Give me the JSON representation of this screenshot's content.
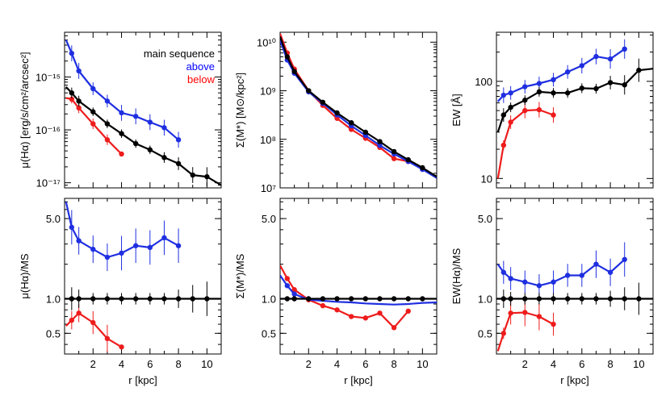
{
  "figure": {
    "legend": {
      "title": "main sequence",
      "entries": [
        {
          "label": "above",
          "color": "#0000ff"
        },
        {
          "label": "below",
          "color": "#ff0000"
        }
      ]
    }
  },
  "colors": {
    "ms": "#000000",
    "above": "#1f2fe0",
    "below": "#ee1c1c"
  },
  "chart_data": [
    {
      "id": "sb",
      "type": "line",
      "yscale": "log",
      "ylabel": "μ(Hα) [erg/s/cm²/arcsec²]",
      "xlabel": "",
      "xlim": [
        0,
        11
      ],
      "ylim": [
        8e-18,
        7e-15
      ],
      "yticks": [
        {
          "v": 1e-15,
          "label": "10⁻¹⁵"
        },
        {
          "v": 1e-16,
          "label": "10⁻¹⁶"
        },
        {
          "v": 1e-17,
          "label": "10⁻¹⁷"
        }
      ],
      "xticks": [
        2,
        4,
        6,
        8,
        10
      ],
      "show_xticklabels": false,
      "series": [
        {
          "name": "main sequence",
          "key": "ms",
          "x": [
            0.1,
            0.5,
            1,
            2,
            3,
            4,
            5,
            6,
            7,
            8,
            9,
            10,
            11
          ],
          "y": [
            6.5e-16,
            5e-16,
            3.5e-16,
            2.2e-16,
            1.3e-16,
            8.5e-17,
            5.5e-17,
            4.2e-17,
            3e-17,
            2.3e-17,
            1.4e-17,
            1.3e-17,
            9e-18
          ],
          "markers": [
            0.5,
            1,
            2,
            3,
            4,
            5,
            6,
            7,
            8,
            9,
            10
          ],
          "err": [
            0.18,
            0.1,
            0.1,
            0.08,
            0.08,
            0.08,
            0.08,
            0.08,
            0.1,
            0.12,
            0.15,
            0.18,
            0
          ]
        },
        {
          "name": "above",
          "key": "above",
          "x": [
            0.1,
            0.5,
            1,
            2,
            3,
            4,
            5,
            6,
            7,
            8
          ],
          "y": [
            5e-15,
            2.8e-15,
            1.3e-15,
            6e-16,
            3.5e-16,
            2.1e-16,
            1.8e-16,
            1.4e-16,
            1.1e-16,
            6.5e-17
          ],
          "markers": [
            0.5,
            1,
            2,
            3,
            4,
            5,
            6,
            7,
            8
          ],
          "err": [
            0,
            0.15,
            0.15,
            0.12,
            0.12,
            0.15,
            0.15,
            0.15,
            0.15,
            0.15
          ]
        },
        {
          "name": "below",
          "key": "below",
          "x": [
            0.1,
            0.5,
            1,
            2,
            3,
            4
          ],
          "y": [
            4e-16,
            3.8e-16,
            2.6e-16,
            1.3e-16,
            6.5e-17,
            3.5e-17
          ],
          "markers": [
            0.5,
            1,
            2,
            3,
            4
          ],
          "err": [
            0,
            0.08,
            0.1,
            0.1,
            0.1,
            0
          ]
        }
      ]
    },
    {
      "id": "sm",
      "type": "line",
      "yscale": "log",
      "ylabel": "Σ(M*) [M⊙/kpc²]",
      "xlabel": "",
      "xlim": [
        0,
        11
      ],
      "ylim": [
        10000000.0,
        16000000000.0
      ],
      "yticks": [
        {
          "v": 10000000000.0,
          "label": "10¹⁰"
        },
        {
          "v": 1000000000.0,
          "label": "10⁹"
        },
        {
          "v": 100000000.0,
          "label": "10⁸"
        },
        {
          "v": 10000000.0,
          "label": "10⁷"
        }
      ],
      "xticks": [
        2,
        4,
        6,
        8,
        10
      ],
      "show_xticklabels": false,
      "series": [
        {
          "name": "main sequence",
          "key": "ms",
          "x": [
            0,
            0.5,
            1,
            2,
            3,
            4,
            5,
            6,
            7,
            8,
            9,
            10,
            11
          ],
          "y": [
            13000000000.0,
            5000000000.0,
            2500000000.0,
            1000000000.0,
            580000000.0,
            350000000.0,
            220000000.0,
            140000000.0,
            90000000.0,
            56000000.0,
            38000000.0,
            26000000.0,
            17000000.0
          ],
          "markers": [
            0.5,
            1,
            2,
            3,
            4,
            5,
            6,
            7,
            8,
            9,
            10
          ],
          "err": [
            0,
            0,
            0,
            0,
            0,
            0,
            0,
            0,
            0,
            0,
            0,
            0,
            0
          ]
        },
        {
          "name": "above",
          "key": "above",
          "x": [
            0,
            0.5,
            1,
            2,
            3,
            4,
            5,
            6,
            7,
            8,
            9,
            10,
            11
          ],
          "y": [
            11000000000.0,
            4300000000.0,
            2300000000.0,
            950000000.0,
            550000000.0,
            320000000.0,
            190000000.0,
            120000000.0,
            75000000.0,
            50000000.0,
            35000000.0,
            24000000.0,
            16000000.0
          ],
          "markers": [
            0.5,
            1,
            2,
            3,
            4,
            5,
            6,
            7,
            8,
            9,
            10
          ],
          "err": [
            0,
            0,
            0,
            0,
            0,
            0,
            0,
            0,
            0,
            0,
            0,
            0,
            0
          ]
        },
        {
          "name": "below",
          "key": "below",
          "x": [
            0,
            0.5,
            1,
            2,
            3,
            4,
            5,
            6,
            7,
            8,
            9
          ],
          "y": [
            15000000000.0,
            6000000000.0,
            2800000000.0,
            1000000000.0,
            500000000.0,
            270000000.0,
            160000000.0,
            105000000.0,
            68000000.0,
            40000000.0,
            35000000.0
          ],
          "markers": [
            0.5,
            1,
            2,
            3,
            4,
            5,
            6,
            7,
            8,
            9
          ],
          "err": [
            0,
            0,
            0,
            0,
            0,
            0,
            0,
            0,
            0,
            0,
            0
          ]
        }
      ]
    },
    {
      "id": "ew",
      "type": "line",
      "yscale": "log",
      "ylabel": "EW [Å]",
      "xlabel": "",
      "xlim": [
        0,
        11
      ],
      "ylim": [
        8,
        320
      ],
      "yticks": [
        {
          "v": 100,
          "label": "100"
        },
        {
          "v": 10,
          "label": "10"
        }
      ],
      "xticks": [
        2,
        4,
        6,
        8,
        10
      ],
      "show_xticklabels": false,
      "series": [
        {
          "name": "main sequence",
          "key": "ms",
          "x": [
            0.1,
            0.5,
            1,
            2,
            3,
            4,
            5,
            6,
            7,
            8,
            9,
            10,
            11
          ],
          "y": [
            30,
            45,
            54,
            64,
            78,
            76,
            76,
            85,
            84,
            97,
            92,
            130,
            135
          ],
          "markers": [
            0.5,
            1,
            2,
            3,
            4,
            5,
            6,
            7,
            8,
            9,
            10
          ],
          "err": [
            0,
            0.07,
            0.05,
            0.05,
            0.05,
            0.05,
            0.05,
            0.05,
            0.05,
            0.07,
            0.1,
            0.12,
            0
          ]
        },
        {
          "name": "above",
          "key": "above",
          "x": [
            0.1,
            0.5,
            1,
            2,
            3,
            4,
            5,
            6,
            7,
            8,
            9
          ],
          "y": [
            62,
            72,
            76,
            88,
            95,
            104,
            125,
            145,
            180,
            170,
            215
          ],
          "markers": [
            0.5,
            1,
            2,
            3,
            4,
            5,
            6,
            7,
            8,
            9
          ],
          "err": [
            0.08,
            0.08,
            0.07,
            0.07,
            0.07,
            0.07,
            0.07,
            0.08,
            0.08,
            0.1,
            0.1
          ]
        },
        {
          "name": "below",
          "key": "below",
          "x": [
            0.1,
            0.5,
            1,
            2,
            3,
            4
          ],
          "y": [
            10,
            22,
            38,
            50,
            51,
            45
          ],
          "markers": [
            0.5,
            1,
            2,
            3,
            4
          ],
          "err": [
            0,
            0.05,
            0.07,
            0.08,
            0.08,
            0.08
          ]
        }
      ]
    },
    {
      "id": "sbr",
      "type": "line",
      "yscale": "log",
      "ylabel": "μ(Hα)/MS",
      "xlabel": "r [kpc]",
      "xlim": [
        0,
        11
      ],
      "ylim": [
        0.33,
        7.5
      ],
      "yticks": [
        {
          "v": 5,
          "label": "5.0"
        },
        {
          "v": 1,
          "label": "1.0"
        },
        {
          "v": 0.5,
          "label": "0.5"
        }
      ],
      "xticks": [
        2,
        4,
        6,
        8,
        10
      ],
      "show_xticklabels": true,
      "refline": 1,
      "series": [
        {
          "name": "main sequence",
          "key": "ms",
          "x": [
            0,
            11
          ],
          "y": [
            1,
            1
          ],
          "markers": [
            0.5,
            1,
            2,
            3,
            4,
            5,
            6,
            7,
            8,
            9,
            10
          ],
          "marker_y": 1,
          "err_list": [
            0.1,
            0.08,
            0.05,
            0.05,
            0.05,
            0.05,
            0.05,
            0.05,
            0.08,
            0.12,
            0.15
          ]
        },
        {
          "name": "above",
          "key": "above",
          "x": [
            0.1,
            0.5,
            1,
            2,
            3,
            4,
            5,
            6,
            7,
            8
          ],
          "y": [
            7,
            4.2,
            3.2,
            2.7,
            2.3,
            2.5,
            2.9,
            2.8,
            3.4,
            2.9
          ],
          "markers": [
            0.5,
            1,
            2,
            3,
            4,
            5,
            6,
            7,
            8
          ],
          "err": [
            0,
            0.15,
            0.12,
            0.12,
            0.12,
            0.15,
            0.15,
            0.15,
            0.15,
            0.15
          ]
        },
        {
          "name": "below",
          "key": "below",
          "x": [
            0.1,
            0.5,
            1,
            2,
            3,
            4
          ],
          "y": [
            0.58,
            0.65,
            0.75,
            0.62,
            0.45,
            0.38
          ],
          "markers": [
            0.5,
            1,
            2,
            3,
            4
          ],
          "err": [
            0,
            0.08,
            0.08,
            0.1,
            0.12,
            0
          ]
        }
      ]
    },
    {
      "id": "smr",
      "type": "line",
      "yscale": "log",
      "ylabel": "Σ(M*)/MS",
      "xlabel": "r [kpc]",
      "xlim": [
        0,
        11
      ],
      "ylim": [
        0.33,
        7.5
      ],
      "yticks": [
        {
          "v": 5,
          "label": "5.0"
        },
        {
          "v": 1,
          "label": "1.0"
        },
        {
          "v": 0.5,
          "label": "0.5"
        }
      ],
      "xticks": [
        2,
        4,
        6,
        8,
        10
      ],
      "show_xticklabels": true,
      "refline": 1,
      "series": [
        {
          "name": "main sequence",
          "key": "ms",
          "x": [
            0,
            11
          ],
          "y": [
            1,
            1
          ],
          "markers": [
            0.5,
            1,
            2,
            3,
            4,
            5,
            6,
            7,
            8,
            9,
            10
          ],
          "marker_y": 1,
          "err_list": [
            0,
            0,
            0,
            0,
            0,
            0,
            0,
            0,
            0,
            0,
            0
          ]
        },
        {
          "name": "above",
          "key": "above",
          "x": [
            0,
            0.5,
            1,
            2,
            3,
            4,
            5,
            6,
            7,
            8,
            9,
            10,
            11
          ],
          "y": [
            1.6,
            1.3,
            1.1,
            0.98,
            0.96,
            0.94,
            0.93,
            0.91,
            0.9,
            0.89,
            0.9,
            0.92,
            0.93
          ],
          "markers": [
            0.5,
            1
          ],
          "err": [
            0,
            0,
            0,
            0,
            0,
            0,
            0,
            0,
            0,
            0,
            0,
            0,
            0
          ]
        },
        {
          "name": "below",
          "key": "below",
          "x": [
            0,
            0.5,
            1,
            2,
            3,
            4,
            5,
            6,
            7,
            8,
            9
          ],
          "y": [
            1.95,
            1.5,
            1.2,
            0.98,
            0.87,
            0.8,
            0.7,
            0.68,
            0.75,
            0.56,
            0.78
          ],
          "markers": [
            0.5,
            1,
            2,
            3,
            4,
            5,
            6,
            7,
            8,
            9
          ],
          "err": [
            0,
            0,
            0,
            0,
            0,
            0,
            0,
            0,
            0,
            0,
            0
          ]
        }
      ]
    },
    {
      "id": "ewr",
      "type": "line",
      "yscale": "log",
      "ylabel": "EW(Hα)/MS",
      "xlabel": "r [kpc]",
      "xlim": [
        0,
        11
      ],
      "ylim": [
        0.33,
        7.5
      ],
      "yticks": [
        {
          "v": 5,
          "label": "5.0"
        },
        {
          "v": 1,
          "label": "1.0"
        },
        {
          "v": 0.5,
          "label": "0.5"
        }
      ],
      "xticks": [
        2,
        4,
        6,
        8,
        10
      ],
      "show_xticklabels": true,
      "refline": 1,
      "series": [
        {
          "name": "main sequence",
          "key": "ms",
          "x": [
            0,
            11
          ],
          "y": [
            1,
            1
          ],
          "markers": [
            0.5,
            1,
            2,
            3,
            4,
            5,
            6,
            7,
            8,
            9,
            10
          ],
          "marker_y": 1,
          "err_list": [
            0.08,
            0.06,
            0.05,
            0.05,
            0.05,
            0.05,
            0.05,
            0.05,
            0.07,
            0.1,
            0.14
          ]
        },
        {
          "name": "above",
          "key": "above",
          "x": [
            0.1,
            0.5,
            1,
            2,
            3,
            4,
            5,
            6,
            7,
            8,
            9
          ],
          "y": [
            2.0,
            1.7,
            1.5,
            1.4,
            1.3,
            1.4,
            1.6,
            1.6,
            2.0,
            1.7,
            2.2
          ],
          "markers": [
            0.5,
            1,
            2,
            3,
            4,
            5,
            6,
            7,
            8,
            9
          ],
          "err": [
            0.12,
            0.1,
            0.1,
            0.1,
            0.1,
            0.1,
            0.1,
            0.1,
            0.12,
            0.12,
            0.15
          ]
        },
        {
          "name": "below",
          "key": "below",
          "x": [
            0.1,
            0.5,
            1,
            2,
            3,
            4
          ],
          "y": [
            0.35,
            0.5,
            0.75,
            0.76,
            0.7,
            0.6
          ],
          "markers": [
            0.5,
            1,
            2,
            3,
            4
          ],
          "err": [
            0,
            0.05,
            0.1,
            0.12,
            0.12,
            0.1
          ]
        }
      ]
    }
  ]
}
